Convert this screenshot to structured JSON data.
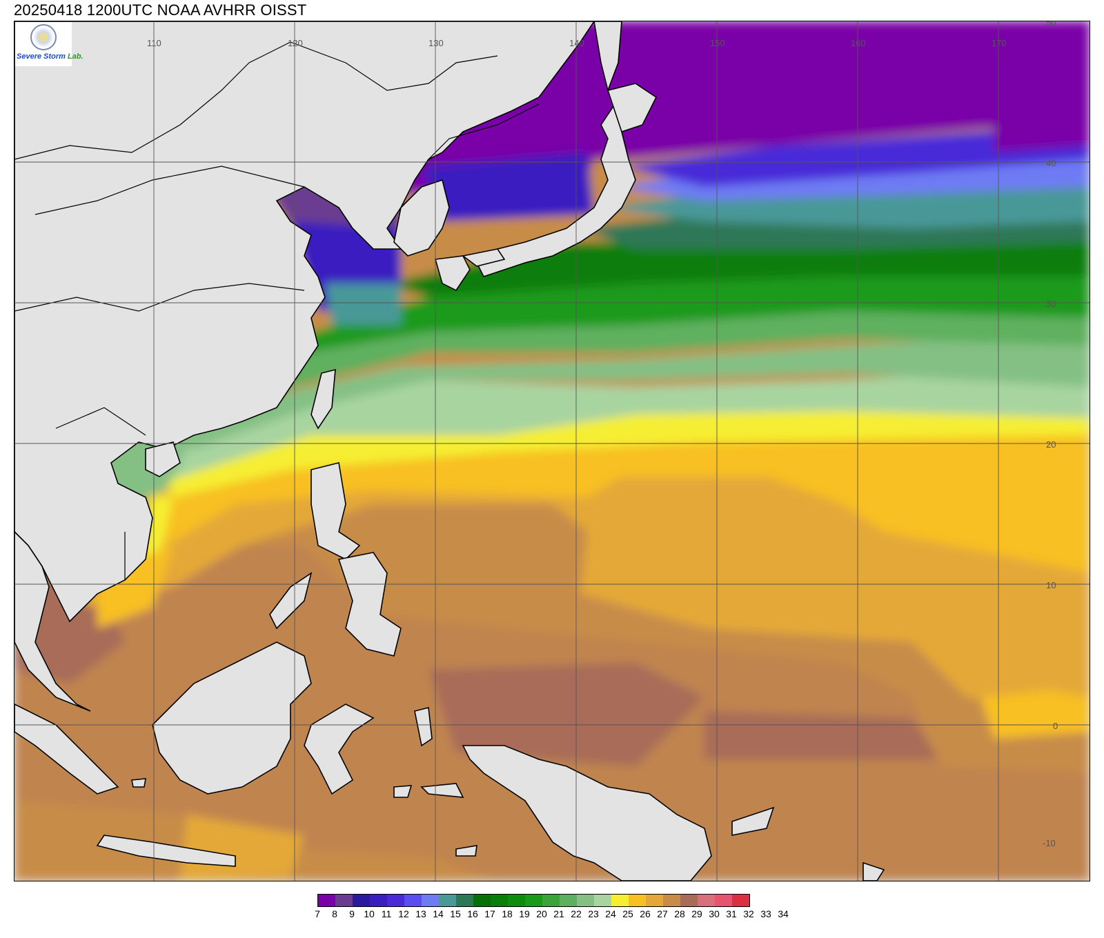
{
  "title": "20250418 1200UTC NOAA AVHRR OISST",
  "logo": {
    "brand": "Severe Storm",
    "lab": "Lab."
  },
  "map": {
    "lon_labels": [
      "110",
      "120",
      "130",
      "140",
      "150",
      "160",
      "170"
    ],
    "lat_labels": [
      "50",
      "40",
      "30",
      "20",
      "10",
      "0",
      "-10"
    ],
    "land_color": "#e3e3e3",
    "coast_color": "#000000",
    "grid_color": "#555555"
  },
  "colorbar": {
    "unit_labels": [
      "7",
      "8",
      "9",
      "10",
      "11",
      "12",
      "13",
      "14",
      "15",
      "16",
      "17",
      "18",
      "19",
      "20",
      "21",
      "22",
      "23",
      "24",
      "25",
      "26",
      "27",
      "28",
      "29",
      "30",
      "31",
      "32",
      "33",
      "34"
    ],
    "colors": [
      "#7a00a8",
      "#6a3c90",
      "#2a1aa0",
      "#3a1ec0",
      "#4a2ad8",
      "#5a4ef0",
      "#6e7cf4",
      "#4a9898",
      "#2e7858",
      "#087008",
      "#0a7e0a",
      "#0e8c0e",
      "#1a9a1a",
      "#3aa43a",
      "#5eb05e",
      "#84c084",
      "#a8d4a0",
      "#f6ee30",
      "#f8c020",
      "#e4a838",
      "#c88c48",
      "#a86c58",
      "#d8707c",
      "#e85470",
      "#dc3040"
    ]
  }
}
